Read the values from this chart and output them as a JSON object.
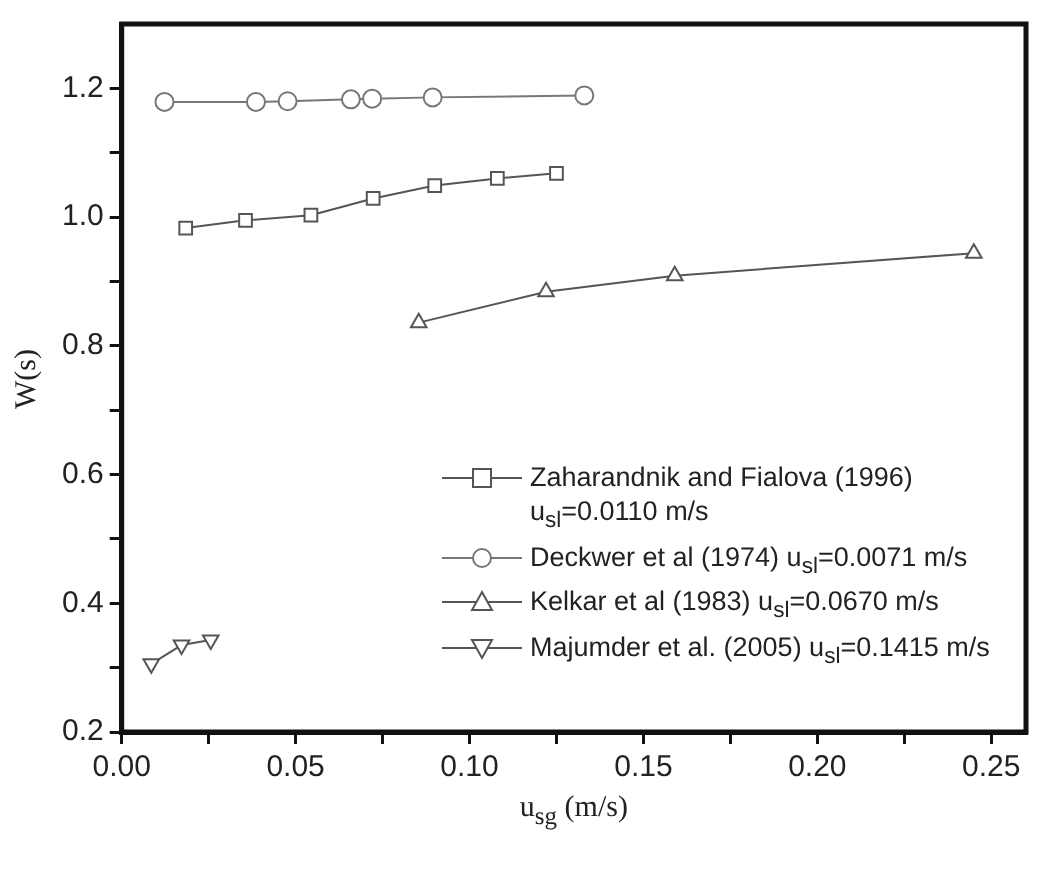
{
  "chart_data": {
    "type": "line",
    "xlabel": "u$_{sg}$ (m/s)",
    "ylabel": "W(s)",
    "xlim": [
      0,
      0.26
    ],
    "ylim": [
      0.2,
      1.3
    ],
    "xticks": [
      {
        "value": 0,
        "label": "0.00"
      },
      {
        "value": 0.025,
        "label": null
      },
      {
        "value": 0.05,
        "label": "0.05"
      },
      {
        "value": 0.075,
        "label": null
      },
      {
        "value": 0.1,
        "label": "0.10"
      },
      {
        "value": 0.125,
        "label": null
      },
      {
        "value": 0.15,
        "label": "0.15"
      },
      {
        "value": 0.175,
        "label": null
      },
      {
        "value": 0.2,
        "label": "0.20"
      },
      {
        "value": 0.225,
        "label": null
      },
      {
        "value": 0.25,
        "label": "0.25"
      }
    ],
    "yticks": [
      {
        "value": 0.2,
        "label": "0.2"
      },
      {
        "value": 0.3,
        "label": null
      },
      {
        "value": 0.4,
        "label": "0.4"
      },
      {
        "value": 0.5,
        "label": null
      },
      {
        "value": 0.6,
        "label": "0.6"
      },
      {
        "value": 0.7,
        "label": null
      },
      {
        "value": 0.8,
        "label": "0.8"
      },
      {
        "value": 0.9,
        "label": null
      },
      {
        "value": 1.0,
        "label": "1.0"
      },
      {
        "value": 1.1,
        "label": null
      },
      {
        "value": 1.2,
        "label": "1.2"
      }
    ],
    "grid": false,
    "legend": "bottom right",
    "line_style": "solid",
    "series": [
      {
        "name": "Zaharandnik and Fialova (1996) u$_{sl}$=0.0110 m/s",
        "color": "#555555",
        "marker": "square",
        "x": [
          0.0184,
          0.0356,
          0.0544,
          0.0723,
          0.09,
          0.108,
          0.125
        ],
        "values": [
          0.983,
          0.995,
          1.003,
          1.029,
          1.049,
          1.06,
          1.068
        ]
      },
      {
        "name": "Deckwer et al (1974) u$_{sl}$=0.0071 m/s",
        "color": "#777777",
        "marker": "circle",
        "x": [
          0.0123,
          0.0386,
          0.0477,
          0.0659,
          0.072,
          0.0894,
          0.133
        ],
        "values": [
          1.179,
          1.179,
          1.18,
          1.183,
          1.184,
          1.186,
          1.189
        ]
      },
      {
        "name": "Kelkar et al (1983) u$_{sl}$=0.0670 m/s",
        "color": "#555555",
        "marker": "triangle",
        "x": [
          0.0854,
          0.122,
          0.159,
          0.245
        ],
        "values": [
          0.836,
          0.884,
          0.909,
          0.944
        ]
      },
      {
        "name": "Majumder et al. (2005) u$_{sl}$=0.1415 m/s",
        "color": "#555555",
        "marker": "triangle-down",
        "x": [
          0.0085,
          0.0172,
          0.0256
        ],
        "values": [
          0.306,
          0.335,
          0.343
        ]
      }
    ]
  }
}
